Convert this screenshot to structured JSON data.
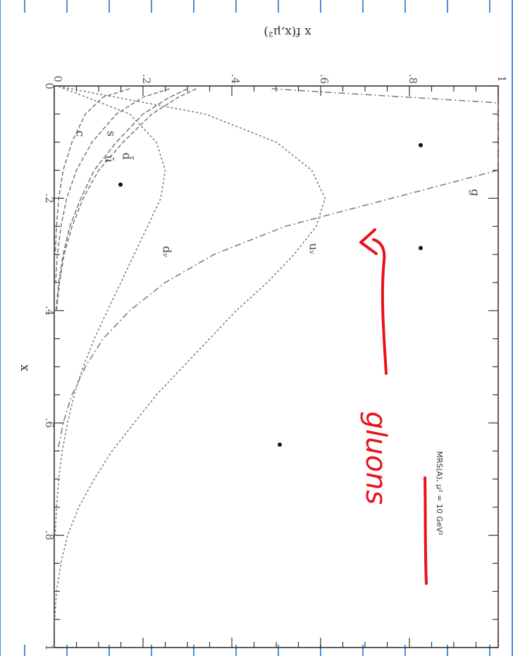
{
  "chart_data": {
    "type": "line",
    "orientation": "rotated 90 degrees clockwise",
    "xlabel": "x",
    "ylabel": "x  f(x,μ²)",
    "xlim": [
      0,
      1
    ],
    "ylim": [
      0,
      1
    ],
    "x_ticks": [
      "0",
      ".2",
      ".4",
      ".6",
      ".8",
      "1"
    ],
    "y_ticks": [
      "0",
      ".2",
      ".4",
      ".6",
      ".8",
      "1"
    ],
    "annotation": "MRS(A), μ² = 10 GeV²",
    "series": [
      {
        "name": "g",
        "x": [
          0.005,
          0.03,
          0.06,
          0.1,
          0.15,
          0.2,
          0.25,
          0.3,
          0.35,
          0.4,
          0.45,
          0.5,
          0.55,
          0.6,
          0.65
        ],
        "y": [
          0.49,
          1.0,
          1.0,
          1.0,
          1.0,
          0.76,
          0.52,
          0.36,
          0.25,
          0.17,
          0.11,
          0.07,
          0.04,
          0.02,
          0.008
        ]
      },
      {
        "name": "uᵥ",
        "x": [
          0.001,
          0.05,
          0.1,
          0.15,
          0.2,
          0.25,
          0.3,
          0.35,
          0.4,
          0.45,
          0.5,
          0.55,
          0.6,
          0.65,
          0.7,
          0.75,
          0.8,
          0.85,
          0.9,
          0.95
        ],
        "y": [
          0.01,
          0.34,
          0.5,
          0.58,
          0.61,
          0.59,
          0.54,
          0.48,
          0.41,
          0.35,
          0.29,
          0.23,
          0.18,
          0.13,
          0.09,
          0.055,
          0.03,
          0.015,
          0.005,
          0.001
        ]
      },
      {
        "name": "dᵥ",
        "x": [
          0.001,
          0.05,
          0.1,
          0.15,
          0.2,
          0.25,
          0.3,
          0.35,
          0.4,
          0.45,
          0.5,
          0.55,
          0.6,
          0.65,
          0.7,
          0.75,
          0.8
        ],
        "y": [
          0.01,
          0.17,
          0.23,
          0.25,
          0.24,
          0.21,
          0.18,
          0.15,
          0.12,
          0.09,
          0.065,
          0.045,
          0.03,
          0.018,
          0.01,
          0.005,
          0.002
        ]
      },
      {
        "name": "ū",
        "x": [
          0.005,
          0.02,
          0.05,
          0.1,
          0.15,
          0.2,
          0.25,
          0.3,
          0.35,
          0.4
        ],
        "y": [
          0.3,
          0.26,
          0.2,
          0.14,
          0.09,
          0.06,
          0.035,
          0.02,
          0.01,
          0.004
        ]
      },
      {
        "name": "d̄",
        "x": [
          0.005,
          0.02,
          0.05,
          0.1,
          0.15,
          0.2,
          0.25,
          0.3,
          0.35,
          0.4
        ],
        "y": [
          0.32,
          0.28,
          0.22,
          0.155,
          0.1,
          0.065,
          0.04,
          0.022,
          0.012,
          0.005
        ]
      },
      {
        "name": "s",
        "x": [
          0.005,
          0.02,
          0.05,
          0.1,
          0.15,
          0.2,
          0.25,
          0.3,
          0.35
        ],
        "y": [
          0.26,
          0.2,
          0.14,
          0.085,
          0.05,
          0.028,
          0.015,
          0.007,
          0.003
        ]
      },
      {
        "name": "c",
        "x": [
          0.005,
          0.02,
          0.05,
          0.1,
          0.15,
          0.2,
          0.25,
          0.3
        ],
        "y": [
          0.17,
          0.11,
          0.07,
          0.04,
          0.02,
          0.01,
          0.005,
          0.002
        ]
      }
    ],
    "curve_labels": [
      {
        "text": "g",
        "x": 0.19,
        "y": 0.94
      },
      {
        "text": "uᵥ",
        "x": 0.29,
        "y": 0.575
      },
      {
        "text": "dᵥ",
        "x": 0.295,
        "y": 0.245
      },
      {
        "text": "d̄",
        "x": 0.125,
        "y": 0.155
      },
      {
        "text": "ū",
        "x": 0.13,
        "y": 0.115
      },
      {
        "text": "s",
        "x": 0.085,
        "y": 0.12
      },
      {
        "text": "c",
        "x": 0.085,
        "y": 0.05
      }
    ]
  },
  "handwritten_annotation": {
    "text": "gluons",
    "color": "#e8121c"
  },
  "colors": {
    "curve": "#777777",
    "frame": "#333333",
    "handwriting": "#e8121c",
    "page_border": "#4a90d9"
  }
}
